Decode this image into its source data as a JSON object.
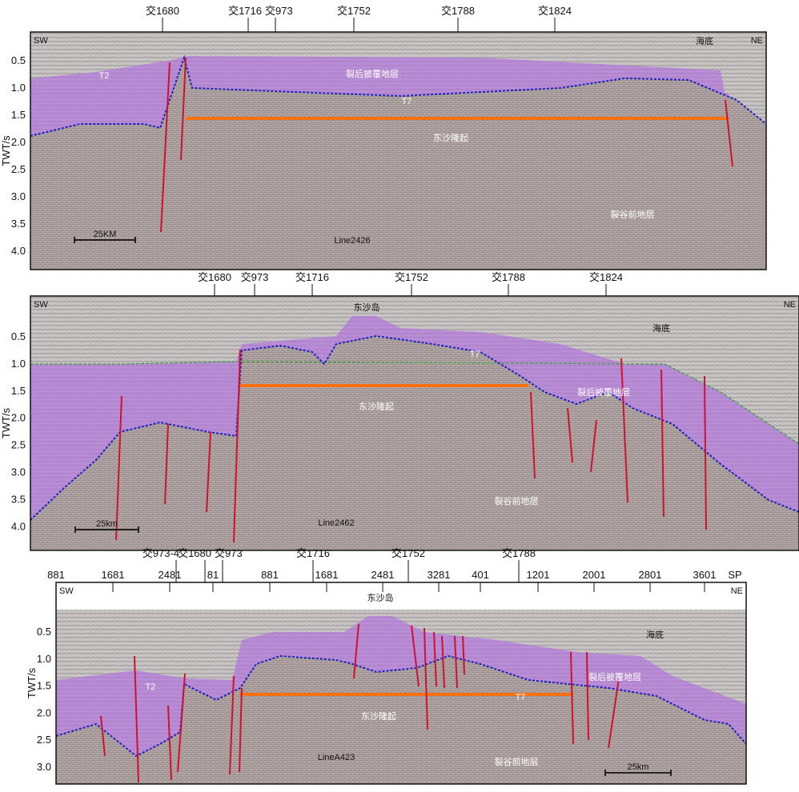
{
  "y_axis_title": "TWT/s",
  "colors": {
    "drape": "#b070e0",
    "horizon": "#2020c0",
    "uplift_line": "#ff7010",
    "fault": "#d01030",
    "seafloor_green": "#40a040"
  },
  "panels": [
    {
      "line_name": "Line2426",
      "sw": "SW",
      "ne": "NE",
      "crosslines": [
        "交1680",
        "交1716",
        "交973",
        "交1752",
        "交1788",
        "交1824"
      ],
      "y_ticks": [
        "0.5",
        "1.0",
        "1.5",
        "2.0",
        "2.5",
        "3.0",
        "3.5",
        "4.0"
      ],
      "labels": {
        "seafloor": "海底",
        "drape": "裂后披覆地层",
        "t7": "T7",
        "t2": "T2",
        "uplift": "东沙隆起",
        "prerift": "裂谷前地层"
      },
      "scale": "25KM"
    },
    {
      "line_name": "Line2462",
      "sw": "SW",
      "ne": "NE",
      "crosslines": [
        "交1680",
        "交973",
        "交1716",
        "交1752",
        "交1788",
        "交1824"
      ],
      "y_ticks": [
        "0.5",
        "1.0",
        "1.5",
        "2.0",
        "2.5",
        "3.0",
        "3.5",
        "4.0"
      ],
      "labels": {
        "island": "东沙岛",
        "seafloor": "海底",
        "drape": "裂后披覆地层",
        "t7": "T7",
        "uplift": "东沙隆起",
        "prerift": "裂谷前地层"
      },
      "scale": "25km"
    },
    {
      "line_name": "LineA423",
      "sw": "SW",
      "ne": "NE",
      "sp": "SP",
      "crosslines": [
        "交973-4",
        "交1680",
        "交973",
        "交1716",
        "交1752",
        "交1788"
      ],
      "sp_ticks": [
        "881",
        "1681",
        "2481",
        "81",
        "881",
        "1681",
        "2481",
        "3281",
        "401",
        "1201",
        "2001",
        "2801",
        "3601"
      ],
      "y_ticks": [
        "0.5",
        "1.0",
        "1.5",
        "2.0",
        "2.5",
        "3.0"
      ],
      "labels": {
        "island": "东沙岛",
        "seafloor": "海底",
        "drape": "裂后披覆地层",
        "t7": "T7",
        "t2": "T2",
        "uplift": "东沙隆起",
        "prerift": "裂谷前地层"
      },
      "scale": "25km"
    }
  ]
}
